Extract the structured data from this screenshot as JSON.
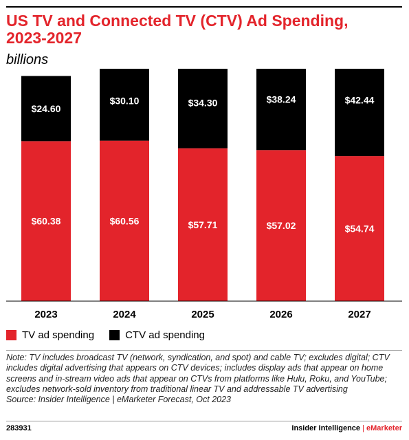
{
  "chart_data": {
    "type": "bar",
    "stacked": true,
    "title": "US TV and Connected TV (CTV) Ad Spending, 2023-2027",
    "subtitle": "billions",
    "categories": [
      "2023",
      "2024",
      "2025",
      "2026",
      "2027"
    ],
    "series": [
      {
        "name": "TV ad spending",
        "values": [
          60.38,
          60.56,
          57.71,
          57.02,
          54.74
        ],
        "labels": [
          "$60.38",
          "$60.56",
          "$57.71",
          "$57.02",
          "$54.74"
        ],
        "color": "#e3242b"
      },
      {
        "name": "CTV ad spending",
        "values": [
          24.6,
          30.1,
          34.3,
          38.24,
          42.44
        ],
        "labels": [
          "$24.60",
          "$30.10",
          "$34.30",
          "$38.24",
          "$42.44"
        ],
        "color": "#000000"
      }
    ],
    "ylim": [
      0,
      100
    ],
    "grid": false,
    "legend": "bottom-left"
  },
  "note": "Note: TV includes broadcast TV (network, syndication, and spot) and cable TV; excludes digital; CTV includes digital advertising that appears on CTV devices; includes display ads that appear on home screens and in-stream video ads that appear on CTVs from platforms like Hulu, Roku, and YouTube; excludes network-sold inventory from traditional linear TV and addressable TV advertising",
  "source": "Source: Insider Intelligence | eMarketer Forecast, Oct 2023",
  "footer": {
    "id": "283931",
    "brand_left": "Insider Intelligence",
    "brand_sep": "|",
    "brand_right": "eMarketer"
  }
}
